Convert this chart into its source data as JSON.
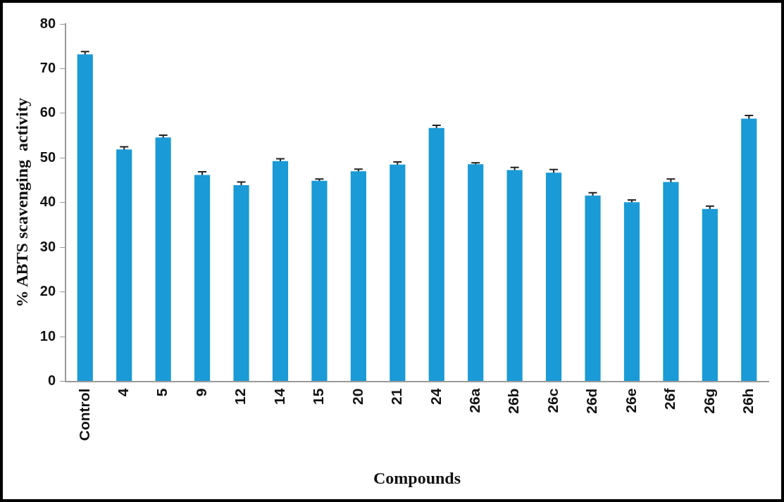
{
  "chart_data": {
    "type": "bar",
    "xlabel": "Compounds",
    "ylabel": "% ABTS scavenging  activity",
    "categories": [
      "Control",
      "4",
      "5",
      "9",
      "12",
      "14",
      "15",
      "20",
      "21",
      "24",
      "26a",
      "26b",
      "26c",
      "26d",
      "26e",
      "26f",
      "26g",
      "26h"
    ],
    "values": [
      73.2,
      51.9,
      54.6,
      46.2,
      43.9,
      49.3,
      44.9,
      47.0,
      48.5,
      56.7,
      48.6,
      47.3,
      46.7,
      41.6,
      40.1,
      44.6,
      38.6,
      58.8
    ],
    "errors": [
      0.6,
      0.6,
      0.5,
      0.7,
      0.7,
      0.5,
      0.4,
      0.5,
      0.6,
      0.6,
      0.3,
      0.6,
      0.7,
      0.6,
      0.5,
      0.7,
      0.6,
      0.7
    ],
    "color": "#1a9ad6",
    "ylim": [
      0,
      80
    ],
    "yticks": [
      0,
      10,
      20,
      30,
      40,
      50,
      60,
      70,
      80
    ],
    "grid": false,
    "legend": false
  }
}
